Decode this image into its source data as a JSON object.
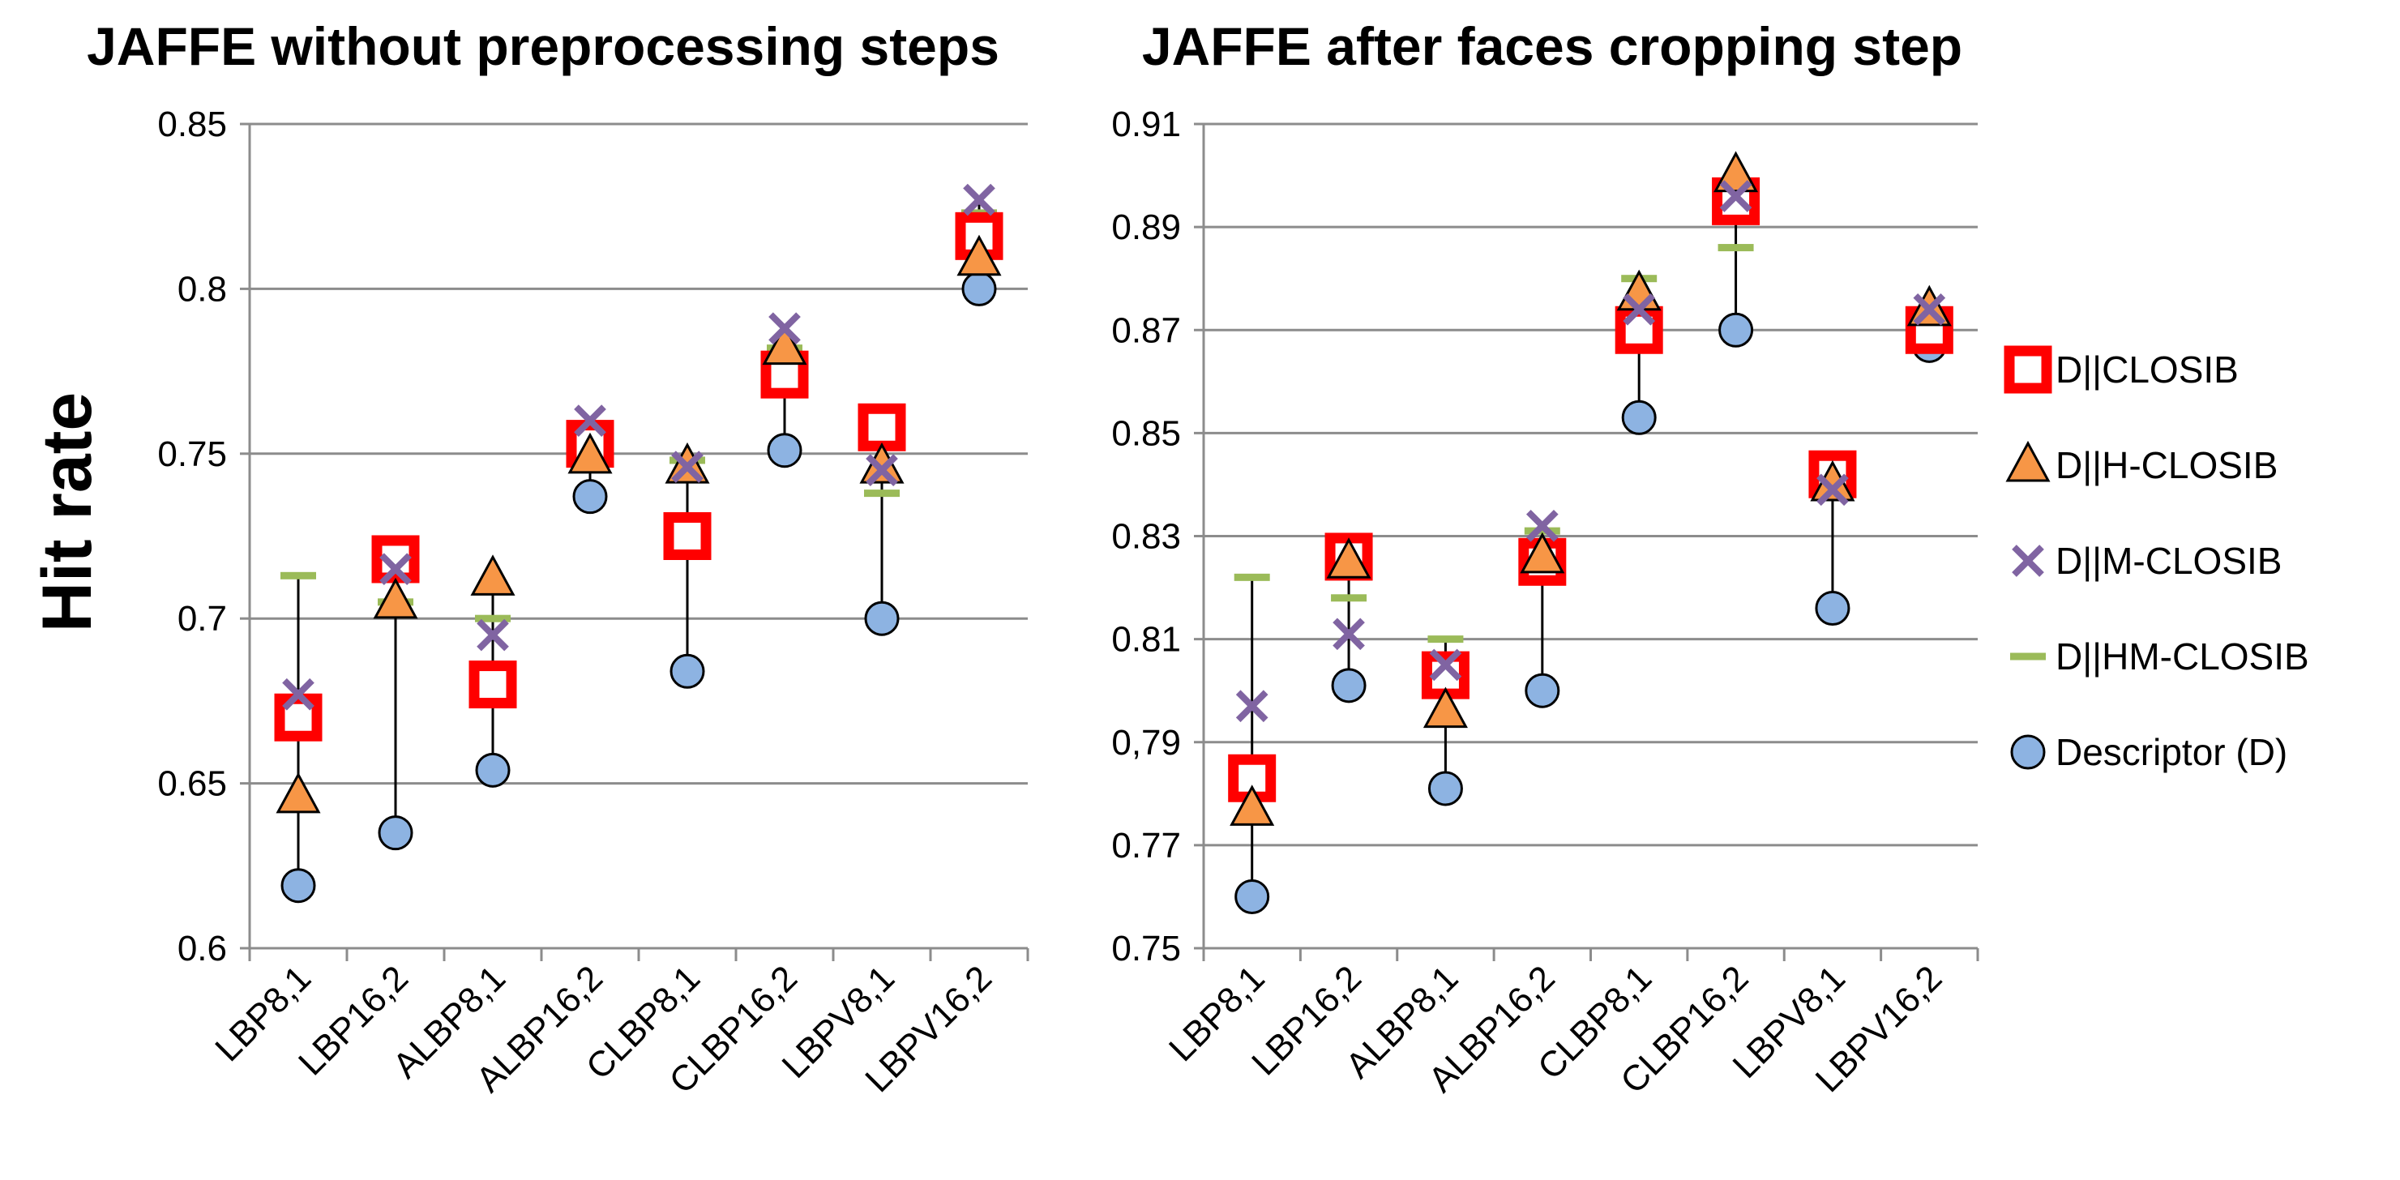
{
  "ylabel": "Hit rate",
  "legend": {
    "items": [
      {
        "key": "closib",
        "label": "D||CLOSIB"
      },
      {
        "key": "h",
        "label": "D||H-CLOSIB"
      },
      {
        "key": "m",
        "label": "D||M-CLOSIB"
      },
      {
        "key": "hm",
        "label": "D||HM-CLOSIB"
      },
      {
        "key": "d",
        "label": "Descriptor (D)"
      }
    ]
  },
  "colors": {
    "grid": "#8c8c8c",
    "axis": "#8c8c8c",
    "closib": "#ff0000",
    "h": "#f79646",
    "m": "#8064a2",
    "hm": "#9bbb59",
    "d": "#8db3e2",
    "marker_edge": "#000000"
  },
  "chart_data": [
    {
      "type": "scatter",
      "title": "JAFFE without preprocessing steps",
      "ylabel": "Hit rate",
      "ylim": [
        0.6,
        0.85
      ],
      "yticks": [
        {
          "value": 0.6,
          "label": "0.6"
        },
        {
          "value": 0.65,
          "label": "0.65"
        },
        {
          "value": 0.7,
          "label": "0.7"
        },
        {
          "value": 0.75,
          "label": "0.75"
        },
        {
          "value": 0.8,
          "label": "0.8"
        },
        {
          "value": 0.85,
          "label": "0.85"
        }
      ],
      "grid": true,
      "categories": [
        "LBP8,1",
        "LBP16,2",
        "ALBP8,1",
        "ALBP16,2",
        "CLBP8,1",
        "CLBP16,2",
        "LBPV8,1",
        "LBPV16,2"
      ],
      "series": [
        {
          "name": "D||CLOSIB",
          "key": "closib",
          "values": [
            0.67,
            0.718,
            0.68,
            0.753,
            0.725,
            0.774,
            0.758,
            0.816
          ]
        },
        {
          "name": "D||H-CLOSIB",
          "key": "h",
          "values": [
            0.646,
            0.705,
            0.712,
            0.749,
            0.746,
            0.782,
            0.746,
            0.809
          ]
        },
        {
          "name": "D||M-CLOSIB",
          "key": "m",
          "values": [
            0.677,
            0.715,
            0.695,
            0.76,
            0.746,
            0.788,
            0.745,
            0.827
          ]
        },
        {
          "name": "D||HM-CLOSIB",
          "key": "hm",
          "values": [
            0.713,
            0.705,
            0.7,
            0.755,
            0.748,
            0.782,
            0.738,
            0.823
          ]
        },
        {
          "name": "Descriptor (D)",
          "key": "d",
          "values": [
            0.619,
            0.635,
            0.654,
            0.737,
            0.684,
            0.751,
            0.7,
            0.8
          ]
        }
      ]
    },
    {
      "type": "scatter",
      "title": "JAFFE after faces cropping step",
      "ylim": [
        0.75,
        0.91
      ],
      "yticks": [
        {
          "value": 0.75,
          "label": "0.75"
        },
        {
          "value": 0.77,
          "label": "0.77"
        },
        {
          "value": 0.79,
          "label": "0,79"
        },
        {
          "value": 0.81,
          "label": "0.81"
        },
        {
          "value": 0.83,
          "label": "0.83"
        },
        {
          "value": 0.85,
          "label": "0.85"
        },
        {
          "value": 0.87,
          "label": "0.87"
        },
        {
          "value": 0.89,
          "label": "0.89"
        },
        {
          "value": 0.91,
          "label": "0.91"
        }
      ],
      "grid": true,
      "categories": [
        "LBP8,1",
        "LBP16,2",
        "ALBP8,1",
        "ALBP16,2",
        "CLBP8,1",
        "CLBP16,2",
        "LBPV8,1",
        "LBPV16,2"
      ],
      "series": [
        {
          "name": "D||CLOSIB",
          "key": "closib",
          "values": [
            0.783,
            0.826,
            0.803,
            0.825,
            0.87,
            0.895,
            0.842,
            0.87
          ]
        },
        {
          "name": "D||H-CLOSIB",
          "key": "h",
          "values": [
            0.777,
            0.825,
            0.796,
            0.826,
            0.877,
            0.9,
            0.84,
            0.874
          ]
        },
        {
          "name": "D||M-CLOSIB",
          "key": "m",
          "values": [
            0.797,
            0.811,
            0.805,
            0.832,
            0.874,
            0.896,
            0.839,
            0.874
          ]
        },
        {
          "name": "D||HM-CLOSIB",
          "key": "hm",
          "values": [
            0.822,
            0.818,
            0.81,
            0.831,
            0.88,
            0.886,
            0.842,
            0.872
          ]
        },
        {
          "name": "Descriptor (D)",
          "key": "d",
          "values": [
            0.76,
            0.801,
            0.781,
            0.8,
            0.853,
            0.87,
            0.816,
            0.867
          ]
        }
      ]
    }
  ]
}
